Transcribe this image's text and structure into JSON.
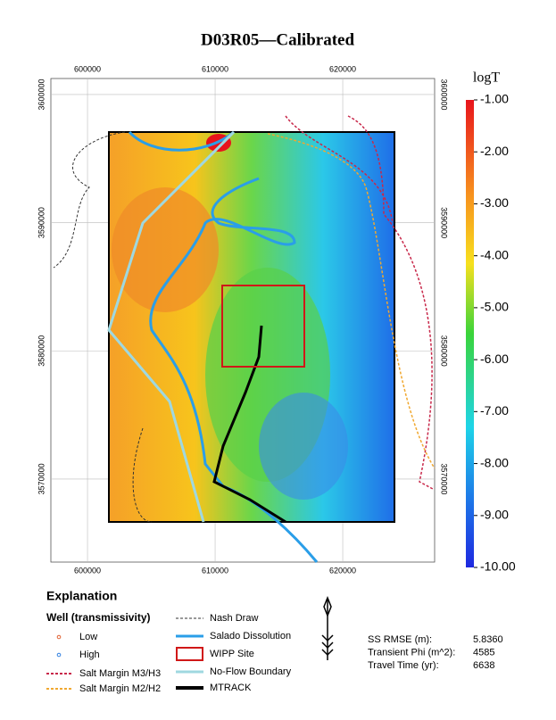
{
  "title": "D03R05—Calibrated",
  "map": {
    "xlim": [
      597130,
      627200
    ],
    "ylim": [
      3563520,
      3601250
    ],
    "xticks": [
      600000,
      610000,
      620000
    ],
    "yticks": [
      3570000,
      3580000,
      3590000,
      3600000
    ]
  },
  "colorbar": {
    "label": "logT",
    "lim": [
      -10,
      -1
    ],
    "ticks": [
      {
        "value": -1,
        "label": "-1.00"
      },
      {
        "value": -2,
        "label": "-2.00"
      },
      {
        "value": -3,
        "label": "-3.00"
      },
      {
        "value": -4,
        "label": "-4.00"
      },
      {
        "value": -5,
        "label": "-5.00"
      },
      {
        "value": -6,
        "label": "-6.00"
      },
      {
        "value": -7,
        "label": "-7.00"
      },
      {
        "value": -8,
        "label": "-8.00"
      },
      {
        "value": -9,
        "label": "-9.00"
      },
      {
        "value": -10,
        "label": "-10.00"
      }
    ]
  },
  "legend": {
    "title": "Explanation",
    "well_heading": "Well (transmissivity)",
    "low": "Low",
    "high": "High",
    "salt_m3": "Salt Margin M3/H3",
    "salt_m2": "Salt Margin M2/H2",
    "nash": "Nash Draw",
    "salado": "Salado Dissolution",
    "wipp": "WIPP Site",
    "noflow": "No-Flow Boundary",
    "mtrack": "MTRACK"
  },
  "stats": {
    "rows": [
      [
        "SS RMSE (m):",
        "5.8360"
      ],
      [
        "Transient Phi (m^2):",
        "4585"
      ],
      [
        "Travel Time (yr):",
        "6638"
      ]
    ]
  }
}
